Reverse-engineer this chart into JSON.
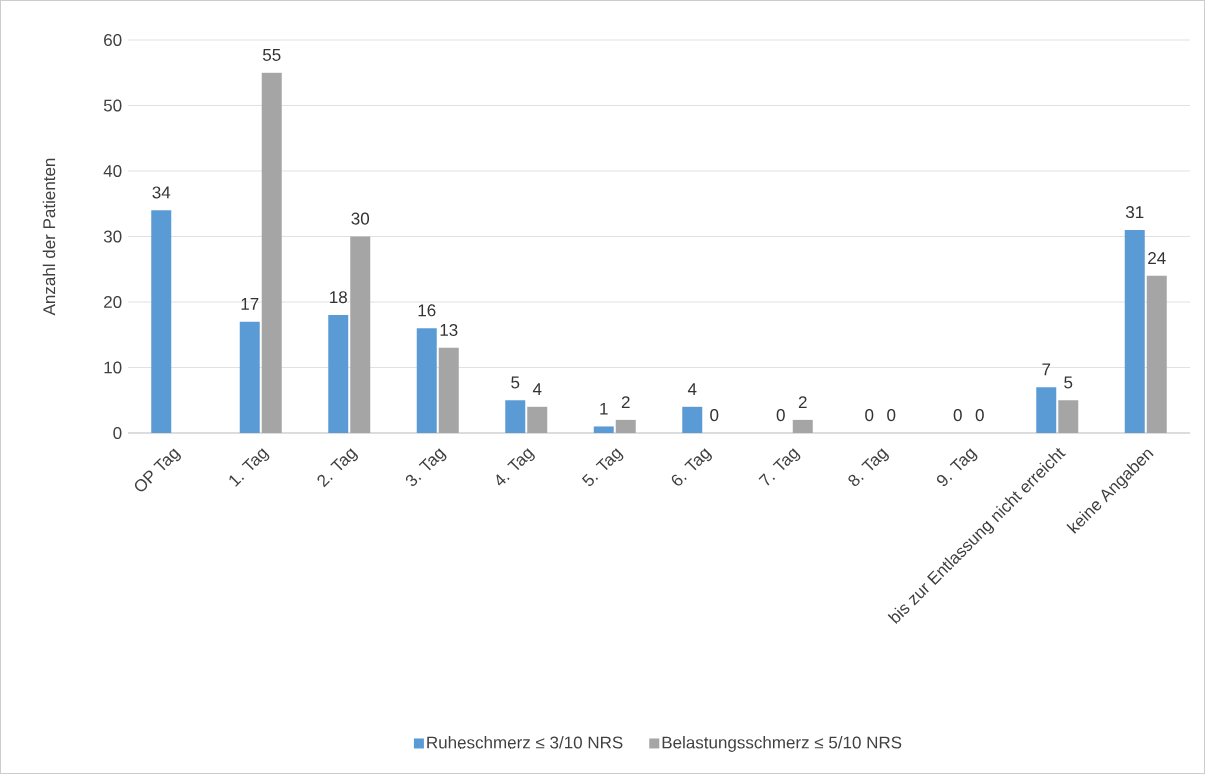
{
  "chart_data": {
    "type": "bar",
    "ylabel": "Anzahl der Patienten",
    "categories": [
      "OP Tag",
      "1. Tag",
      "2. Tag",
      "3. Tag",
      "4. Tag",
      "5. Tag",
      "6. Tag",
      "7. Tag",
      "8. Tag",
      "9. Tag",
      "bis zur Entlassung nicht erreicht",
      "keine Angaben"
    ],
    "series": [
      {
        "name": "Ruheschmerz ≤ 3/10 NRS",
        "color": "#5b9bd5",
        "values": [
          34,
          17,
          18,
          16,
          5,
          1,
          4,
          0,
          0,
          0,
          7,
          31
        ]
      },
      {
        "name": "Belastungsschmerz ≤ 5/10 NRS",
        "color": "#a5a5a5",
        "values": [
          null,
          55,
          30,
          13,
          4,
          2,
          0,
          2,
          0,
          0,
          5,
          24
        ]
      }
    ],
    "ylim": [
      0,
      60
    ],
    "yticks": [
      0,
      10,
      20,
      30,
      40,
      50,
      60
    ],
    "grid": "y",
    "legend": "bottom",
    "data_labels": true
  }
}
